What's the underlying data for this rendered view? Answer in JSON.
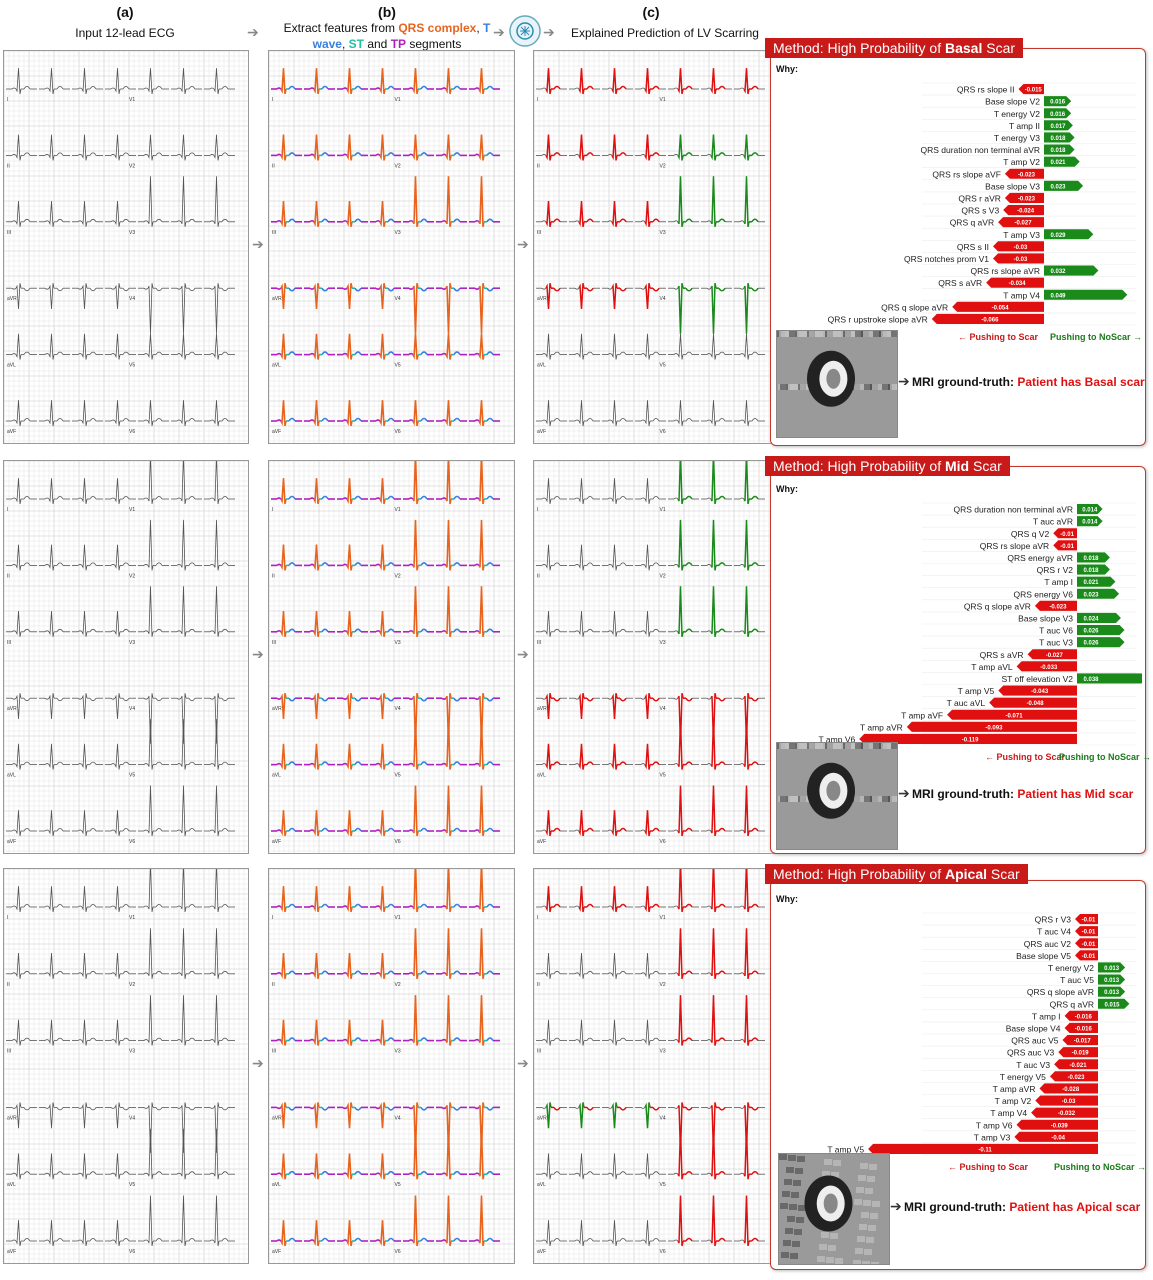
{
  "headers": {
    "a_label": "(a)",
    "a_text": "Input 12-lead ECG",
    "b_label": "(b)",
    "b_line1_prefix": "Extract features from ",
    "b_qrs": "QRS complex",
    "b_comma": ", ",
    "b_t": "T",
    "b_wave": "wave",
    "b_mid": ", ",
    "b_st": "ST",
    "b_and": " and ",
    "b_tp": "TP",
    "b_seg": " segments",
    "c_label": "(c)",
    "c_text": "Explained Prediction of LV Scarring"
  },
  "colors": {
    "qrs": "#e8641e",
    "t": "#3a7ee0",
    "st": "#20c0a0",
    "tp": "#b020c0",
    "scar": "#e01010",
    "noscar": "#1a8a1a"
  },
  "explanations": [
    {
      "title_prefix": "Method: High Probability of ",
      "title_bold": "Basal",
      "title_suffix": " Scar",
      "why": "Why:",
      "legend_scar": "← Pushing to Scar",
      "legend_noscar": "Pushing to NoScar →",
      "gt_prefix": "MRI ground-truth: ",
      "gt_result": "Patient has Basal scar",
      "chart_data": {
        "type": "bar",
        "categories": [
          "QRS rs slope II",
          "Base slope V2",
          "T energy V2",
          "T amp II",
          "T energy V3",
          "QRS duration non terminal aVR",
          "T amp V2",
          "QRS rs slope aVF",
          "Base slope V3",
          "QRS r aVR",
          "QRS s V3",
          "QRS q aVR",
          "T amp V3",
          "QRS s II",
          "QRS notches prom V1",
          "QRS rs slope aVR",
          "QRS s aVR",
          "T amp V4",
          "QRS q slope aVR",
          "QRS r upstroke slope aVR"
        ],
        "values": [
          -0.015,
          0.016,
          0.016,
          0.017,
          0.018,
          0.018,
          0.021,
          -0.023,
          0.023,
          -0.023,
          -0.024,
          -0.027,
          0.029,
          -0.03,
          -0.03,
          0.032,
          -0.034,
          0.049,
          -0.054,
          -0.066
        ],
        "labels": [
          "-0.015",
          "0.016",
          "0.016",
          "0.017",
          "0.018",
          "0.018",
          "0.021",
          "-0.023",
          "0.023",
          "-0.023",
          "-0.024",
          "-0.027",
          "0.029",
          "-0.03",
          "-0.03",
          "0.032",
          "-0.034",
          "0.049",
          "-0.054",
          "-0.066"
        ]
      }
    },
    {
      "title_prefix": "Method: High Probability of ",
      "title_bold": "Mid",
      "title_suffix": " Scar",
      "why": "Why:",
      "legend_scar": "← Pushing to Scar",
      "legend_noscar": "Pushing to NoScar →",
      "gt_prefix": "MRI ground-truth: ",
      "gt_result": "Patient has Mid scar",
      "chart_data": {
        "type": "bar",
        "categories": [
          "QRS duration non terminal aVR",
          "T auc aVR",
          "QRS q V2",
          "QRS rs slope aVR",
          "QRS energy aVR",
          "QRS r V2",
          "T amp I",
          "QRS energy V6",
          "QRS q slope aVR",
          "Base slope V3",
          "T auc V6",
          "T auc V3",
          "QRS s aVR",
          "T amp aVL",
          "ST off elevation V2",
          "T amp V5",
          "T auc aVL",
          "T amp aVF",
          "T amp aVR",
          "T amp V6"
        ],
        "values": [
          0.014,
          0.014,
          -0.013,
          -0.013,
          0.018,
          0.018,
          0.021,
          0.023,
          -0.023,
          0.024,
          0.026,
          0.026,
          -0.027,
          -0.033,
          0.038,
          -0.043,
          -0.048,
          -0.071,
          -0.093,
          -0.119
        ],
        "labels": [
          "0.014",
          "0.014",
          "-0.01",
          "-0.01",
          "0.018",
          "0.018",
          "0.021",
          "0.023",
          "-0.023",
          "0.024",
          "0.026",
          "0.026",
          "-0.027",
          "-0.033",
          "0.038",
          "-0.043",
          "-0.048",
          "-0.071",
          "-0.093",
          "-0.119"
        ]
      }
    },
    {
      "title_prefix": "Method: High Probability of ",
      "title_bold": "Apical",
      "title_suffix": " Scar",
      "why": "Why:",
      "legend_scar": "← Pushing to Scar",
      "legend_noscar": "Pushing to NoScar →",
      "gt_prefix": "MRI ground-truth: ",
      "gt_result": "Patient has Apical scar",
      "chart_data": {
        "type": "bar",
        "categories": [
          "QRS r V3",
          "T auc V4",
          "QRS auc V2",
          "Base slope V5",
          "T energy V2",
          "T auc V5",
          "QRS q slope aVR",
          "QRS q aVR",
          "T amp I",
          "Base slope V4",
          "QRS auc V5",
          "QRS auc V3",
          "T auc V3",
          "T energy V5",
          "T amp aVR",
          "T amp V2",
          "T amp V4",
          "T amp V6",
          "T amp V3",
          "T amp V5"
        ],
        "values": [
          -0.011,
          -0.011,
          -0.011,
          -0.011,
          0.013,
          0.013,
          0.013,
          0.015,
          -0.016,
          -0.016,
          -0.017,
          -0.019,
          -0.021,
          -0.023,
          -0.028,
          -0.03,
          -0.032,
          -0.039,
          -0.04,
          -0.11
        ],
        "labels": [
          "-0.01",
          "-0.01",
          "-0.01",
          "-0.01",
          "0.013",
          "0.013",
          "0.013",
          "0.015",
          "-0.016",
          "-0.016",
          "-0.017",
          "-0.019",
          "-0.021",
          "-0.023",
          "-0.028",
          "-0.03",
          "-0.032",
          "-0.039",
          "-0.04",
          "-0.11"
        ]
      }
    }
  ],
  "ecg_rows": [
    {
      "leads_left": [
        "I",
        "II",
        "III",
        "aVR",
        "aVL",
        "aVF"
      ],
      "leads_right": [
        "V1",
        "V2",
        "V3",
        "V4",
        "V5",
        "V6"
      ]
    },
    {
      "leads_left": [
        "I",
        "II",
        "III",
        "aVR",
        "aVL",
        "aVF"
      ],
      "leads_right": [
        "V1",
        "V2",
        "V3",
        "V4",
        "V5",
        "V6"
      ]
    },
    {
      "leads_left": [
        "I",
        "II",
        "III",
        "aVR",
        "aVL",
        "aVF"
      ],
      "leads_right": [
        "V1",
        "V2",
        "V3",
        "V4",
        "V5",
        "V6"
      ]
    }
  ]
}
